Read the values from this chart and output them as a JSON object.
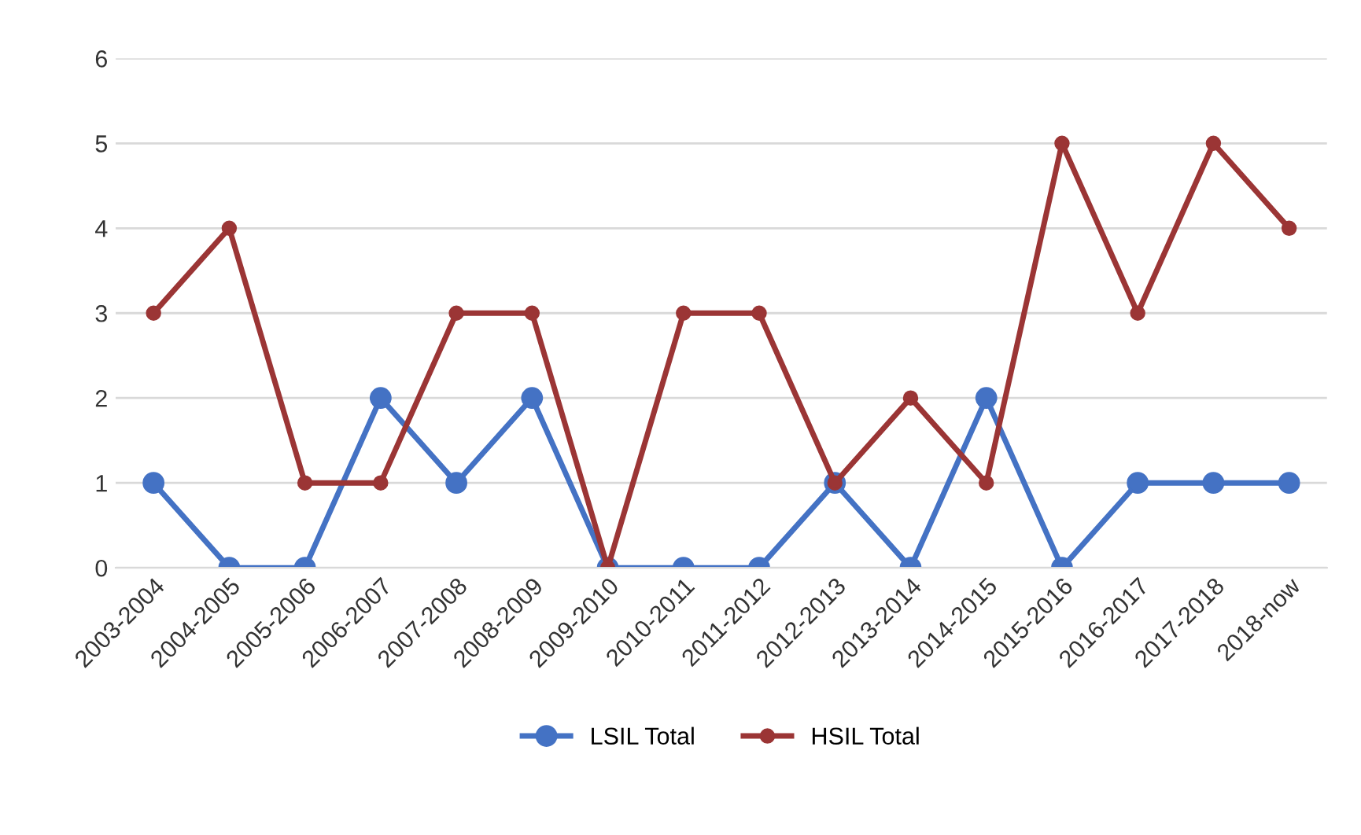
{
  "chart_data": {
    "type": "line",
    "categories": [
      "2003-2004",
      "2004-2005",
      "2005-2006",
      "2006-2007",
      "2007-2008",
      "2008-2009",
      "2009-2010",
      "2010-2011",
      "2011-2012",
      "2012-2013",
      "2013-2014",
      "2014-2015",
      "2015-2016",
      "2016-2017",
      "2017-2018",
      "2018-now"
    ],
    "series": [
      {
        "name": "LSIL Total",
        "color": "#4472c4",
        "values": [
          1,
          0,
          0,
          2,
          1,
          2,
          0,
          0,
          0,
          1,
          0,
          2,
          0,
          1,
          1,
          1
        ]
      },
      {
        "name": "HSIL Total",
        "color": "#9b3535",
        "values": [
          3,
          4,
          1,
          1,
          3,
          3,
          0,
          3,
          3,
          1,
          2,
          1,
          5,
          3,
          5,
          4
        ]
      }
    ],
    "ylim": [
      0,
      6
    ],
    "yticks": [
      0,
      1,
      2,
      3,
      4,
      5,
      6
    ],
    "grid": "y",
    "legend": "bottom",
    "marker": "circle",
    "line_style": "solid"
  }
}
